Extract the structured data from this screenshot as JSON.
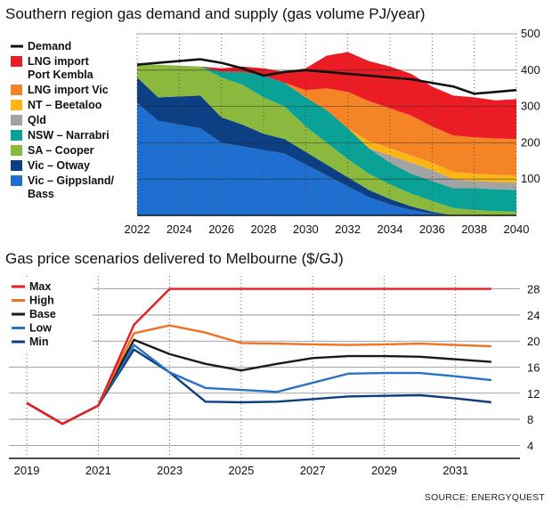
{
  "source": "SOURCE: ENERGYQUEST",
  "chart_data": [
    {
      "type": "area",
      "title": "Southern region gas demand and supply (gas volume PJ/year)",
      "xlabel": "",
      "ylabel": "",
      "xlim": [
        2022,
        2040
      ],
      "ylim": [
        0,
        500
      ],
      "x_ticks": [
        "2022",
        "2024",
        "2026",
        "2028",
        "2030",
        "2032",
        "2034",
        "2036",
        "2038",
        "2040"
      ],
      "y_ticks": [
        "100",
        "200",
        "300",
        "400",
        "500"
      ],
      "legend_position": "left",
      "series_order_bottom_to_top": [
        "Vic – Gippsland/ Bass",
        "Vic – Otway",
        "SA – Cooper",
        "NSW – Narrabri",
        "Qld",
        "NT – Beetaloo",
        "LNG import Vic",
        "LNG import Port Kembla"
      ],
      "series": [
        {
          "name": "Vic – Gippsland/ Bass",
          "legend_lines": [
            "Vic – Gippsland/",
            "Bass"
          ],
          "color": "#1f6fd1",
          "x": [
            2022,
            2023,
            2025,
            2026,
            2027,
            2028,
            2029,
            2030,
            2031,
            2032,
            2033,
            2034,
            2035,
            2036,
            2037
          ],
          "values": [
            310,
            260,
            240,
            200,
            190,
            180,
            170,
            140,
            110,
            80,
            50,
            30,
            15,
            5,
            0
          ]
        },
        {
          "name": "Vic – Otway",
          "legend_lines": [
            "Vic – Otway"
          ],
          "color": "#0d3f85",
          "x": [
            2022,
            2023,
            2025,
            2026,
            2027,
            2028,
            2029,
            2030,
            2031,
            2032,
            2033,
            2034,
            2035,
            2036,
            2037
          ],
          "values": [
            70,
            65,
            90,
            70,
            60,
            45,
            40,
            35,
            30,
            25,
            20,
            15,
            10,
            5,
            0
          ]
        },
        {
          "name": "SA – Cooper",
          "legend_lines": [
            "SA – Cooper"
          ],
          "color": "#8bb93d",
          "x": [
            2022,
            2023,
            2025,
            2026,
            2027,
            2028,
            2029,
            2030,
            2031,
            2032,
            2033,
            2034,
            2035,
            2036,
            2037,
            2038,
            2039,
            2040
          ],
          "values": [
            35,
            90,
            80,
            110,
            110,
            100,
            90,
            70,
            60,
            50,
            45,
            40,
            35,
            30,
            20,
            15,
            12,
            10
          ]
        },
        {
          "name": "NSW – Narrabri",
          "legend_lines": [
            "NSW – Narrabri"
          ],
          "color": "#0aa197",
          "x": [
            2022,
            2025,
            2026,
            2027,
            2028,
            2029,
            2030,
            2031,
            2032,
            2033,
            2034,
            2035,
            2036,
            2037,
            2038,
            2039,
            2040
          ],
          "values": [
            0,
            0,
            15,
            35,
            60,
            65,
            80,
            90,
            85,
            70,
            60,
            55,
            55,
            55,
            60,
            60,
            60
          ]
        },
        {
          "name": "Qld",
          "legend_lines": [
            "Qld"
          ],
          "color": "#a3a3a3",
          "x": [
            2022,
            2033,
            2034,
            2035,
            2036,
            2037,
            2038,
            2039,
            2040
          ],
          "values": [
            0,
            0,
            20,
            30,
            30,
            25,
            20,
            20,
            20
          ]
        },
        {
          "name": "NT – Beetaloo",
          "legend_lines": [
            "NT – Beetaloo"
          ],
          "color": "#fbb615",
          "x": [
            2022,
            2032,
            2033,
            2034,
            2035,
            2036,
            2037,
            2038,
            2039,
            2040
          ],
          "values": [
            0,
            0,
            20,
            20,
            20,
            20,
            20,
            20,
            20,
            20
          ]
        },
        {
          "name": "LNG import Vic",
          "legend_lines": [
            "LNG import Vic"
          ],
          "color": "#f58426",
          "x": [
            2022,
            2029,
            2030,
            2031,
            2032,
            2033,
            2034,
            2035,
            2036,
            2037,
            2038,
            2039,
            2040
          ],
          "values": [
            0,
            0,
            20,
            60,
            100,
            110,
            110,
            110,
            100,
            100,
            100,
            100,
            100
          ]
        },
        {
          "name": "LNG import Port Kembla",
          "legend_lines": [
            "LNG import",
            "Port Kembla"
          ],
          "color": "#ec1c24",
          "x": [
            2022,
            2023,
            2025,
            2026,
            2027,
            2028,
            2029,
            2030,
            2031,
            2032,
            2033,
            2034,
            2035,
            2036,
            2037,
            2038,
            2039,
            2040
          ],
          "values": [
            0,
            0,
            0,
            10,
            15,
            20,
            30,
            60,
            90,
            110,
            110,
            115,
            115,
            110,
            110,
            110,
            105,
            110
          ]
        }
      ],
      "lines": [
        {
          "name": "Demand",
          "legend_lines": [
            "Demand"
          ],
          "color": "#111111",
          "x": [
            2022,
            2023,
            2025,
            2026,
            2027,
            2028,
            2029,
            2030,
            2031,
            2032,
            2033,
            2034,
            2035,
            2036,
            2037,
            2038,
            2039,
            2040
          ],
          "values": [
            415,
            420,
            430,
            420,
            405,
            385,
            395,
            400,
            395,
            390,
            385,
            380,
            375,
            365,
            355,
            335,
            340,
            345
          ]
        }
      ]
    },
    {
      "type": "line",
      "title": "Gas price scenarios delivered to Melbourne ($/GJ)",
      "xlabel": "",
      "ylabel": "",
      "xlim": [
        2018.5,
        2032.8
      ],
      "ylim": [
        2,
        30
      ],
      "x_ticks": [
        "2019",
        "2021",
        "2023",
        "2025",
        "2027",
        "2029",
        "2031"
      ],
      "y_ticks": [
        "4",
        "8",
        "12",
        "16",
        "20",
        "24",
        "28"
      ],
      "legend_position": "top-left",
      "series": [
        {
          "name": "Max",
          "color": "#e41e26",
          "x": [
            2019,
            2020,
            2021,
            2022,
            2023,
            2024,
            2025,
            2026,
            2027,
            2028,
            2029,
            2030,
            2031,
            2032
          ],
          "values": [
            10.5,
            7.3,
            10.1,
            22.5,
            28.0,
            28.0,
            28.0,
            28.0,
            28.0,
            28.0,
            28.0,
            28.0,
            28.0,
            28.0
          ]
        },
        {
          "name": "High",
          "color": "#f37121",
          "x": [
            2019,
            2020,
            2021,
            2022,
            2023,
            2024,
            2025,
            2026,
            2027,
            2028,
            2029,
            2030,
            2031,
            2032
          ],
          "values": [
            10.5,
            7.3,
            10.1,
            21.2,
            22.4,
            21.3,
            19.7,
            19.6,
            19.5,
            19.4,
            19.5,
            19.6,
            19.4,
            19.2
          ]
        },
        {
          "name": "Base",
          "color": "#1a1a1a",
          "x": [
            2019,
            2020,
            2021,
            2022,
            2023,
            2024,
            2025,
            2026,
            2027,
            2028,
            2029,
            2030,
            2031,
            2032
          ],
          "values": [
            10.5,
            7.3,
            10.1,
            20.2,
            18.0,
            16.5,
            15.5,
            16.5,
            17.4,
            17.7,
            17.7,
            17.6,
            17.2,
            16.8
          ]
        },
        {
          "name": "Low",
          "color": "#2672c9",
          "x": [
            2019,
            2020,
            2021,
            2022,
            2023,
            2024,
            2025,
            2026,
            2027,
            2028,
            2029,
            2030,
            2031,
            2032
          ],
          "values": [
            10.5,
            7.3,
            10.1,
            19.4,
            15.2,
            12.8,
            12.5,
            12.2,
            13.6,
            15.0,
            15.1,
            15.1,
            14.6,
            14.0
          ]
        },
        {
          "name": "Min",
          "color": "#0d3d7e",
          "x": [
            2019,
            2020,
            2021,
            2022,
            2023,
            2024,
            2025,
            2026,
            2027,
            2028,
            2029,
            2030,
            2031,
            2032
          ],
          "values": [
            10.5,
            7.3,
            10.1,
            18.7,
            15.2,
            10.7,
            10.6,
            10.7,
            11.1,
            11.5,
            11.6,
            11.7,
            11.2,
            10.6
          ]
        }
      ]
    }
  ]
}
